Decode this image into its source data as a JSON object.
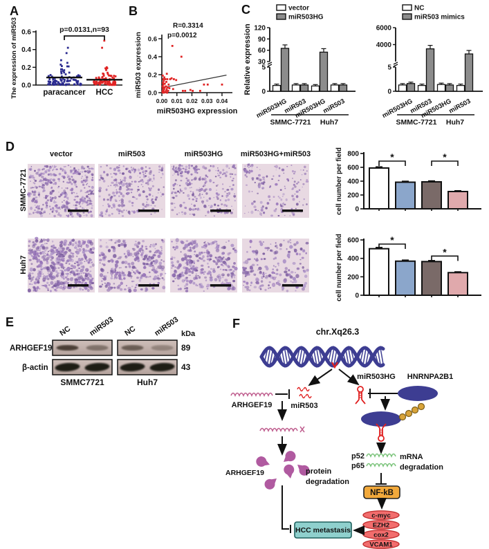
{
  "panel_labels": {
    "A": "A",
    "B": "B",
    "C": "C",
    "D": "D",
    "E": "E",
    "F": "F"
  },
  "chart_data": [
    {
      "id": "A",
      "type": "scatter",
      "ylabel": "The expression of miR503",
      "annotation": "p=0.0131,n=93",
      "ylim": [
        0,
        0.6
      ],
      "yticks": [
        "0.0",
        "0.2",
        "0.4",
        "0.6"
      ],
      "categories": [
        "paracancer",
        "HCC"
      ],
      "groups": [
        {
          "name": "paracancer",
          "color": "#2b2b90",
          "n": 93,
          "mean_line": 0.085,
          "outliers": [
            0.42,
            0.36,
            0.28,
            0.25,
            0.23,
            0.21
          ]
        },
        {
          "name": "HCC",
          "color": "#e02424",
          "n": 93,
          "mean_line": 0.06,
          "outliers": [
            0.5,
            0.42,
            0.2,
            0.19
          ]
        }
      ]
    },
    {
      "id": "B",
      "type": "scatter",
      "xlabel": "miR503HG expression",
      "ylabel": "miR503 expression",
      "r_label": "R=0.3314",
      "p_label": "p=0.0012",
      "color": "#e02424",
      "xlim": [
        0,
        0.046
      ],
      "ylim": [
        0,
        0.6
      ],
      "xticks": [
        "0.00",
        "0.01",
        "0.02",
        "0.03",
        "0.04"
      ],
      "yticks": [
        "0.0",
        "0.2",
        "0.4",
        "0.6"
      ],
      "points": [
        [
          0.0004,
          0.005
        ],
        [
          0.0006,
          0.02
        ],
        [
          0.001,
          0.01
        ],
        [
          0.0012,
          0.03
        ],
        [
          0.0008,
          0.05
        ],
        [
          0.0015,
          0.04
        ],
        [
          0.0005,
          0.07
        ],
        [
          0.001,
          0.09
        ],
        [
          0.0018,
          0.06
        ],
        [
          0.0007,
          0.11
        ],
        [
          0.0013,
          0.13
        ],
        [
          0.002,
          0.1
        ],
        [
          0.0009,
          0.15
        ],
        [
          0.0016,
          0.17
        ],
        [
          0.0006,
          0.19
        ],
        [
          0.0022,
          0.15
        ],
        [
          0.0011,
          0.0
        ],
        [
          0.0021,
          0.005
        ],
        [
          0.0028,
          0.02
        ],
        [
          0.0032,
          0.04
        ],
        [
          0.0027,
          0.07
        ],
        [
          0.0035,
          0.0
        ],
        [
          0.0038,
          0.06
        ],
        [
          0.003,
          0.12
        ],
        [
          0.0036,
          0.15
        ],
        [
          0.0042,
          0.02
        ],
        [
          0.0045,
          0.09
        ],
        [
          0.0033,
          0.21
        ],
        [
          0.005,
          0.05
        ],
        [
          0.0055,
          0.15
        ],
        [
          0.0065,
          0.16
        ],
        [
          0.007,
          0.52
        ],
        [
          0.0075,
          0.04
        ],
        [
          0.008,
          0.15
        ],
        [
          0.0095,
          0.14
        ],
        [
          0.013,
          0.4
        ],
        [
          0.014,
          0.02
        ],
        [
          0.0155,
          0.02
        ],
        [
          0.019,
          0.03
        ],
        [
          0.0205,
          0.02
        ],
        [
          0.0255,
          0.02
        ],
        [
          0.028,
          0.09
        ],
        [
          0.0305,
          0.09
        ],
        [
          0.04,
          0.09
        ]
      ],
      "trend": [
        [
          0.0005,
          0.055
        ],
        [
          0.043,
          0.195
        ]
      ]
    },
    {
      "id": "C1",
      "type": "bar",
      "ylabel": "Relative expression",
      "legend": [
        {
          "label": "vector",
          "color": "#ffffff"
        },
        {
          "label": "miR503HG",
          "color": "#8c8c8c"
        }
      ],
      "axis_break": {
        "lower_max": 5,
        "upper_min": 30,
        "upper_max": 120
      },
      "lower_ticks": [
        0,
        5
      ],
      "upper_ticks": [
        30,
        60,
        90,
        120
      ],
      "group_labels": [
        "miR503HG",
        "miR503",
        "miR503HG",
        "miR503"
      ],
      "cell_lines": [
        {
          "name": "SMMC-7721",
          "groups": [
            0,
            1
          ]
        },
        {
          "name": "Huh7",
          "groups": [
            2,
            3
          ]
        }
      ],
      "series": [
        {
          "name": "vector",
          "values": [
            1.2,
            1.3,
            1.1,
            1.3
          ]
        },
        {
          "name": "miR503HG",
          "values": [
            65,
            1.3,
            55,
            1.3
          ]
        }
      ]
    },
    {
      "id": "C2",
      "type": "bar",
      "ylabel": "",
      "legend": [
        {
          "label": "NC",
          "color": "#ffffff"
        },
        {
          "label": "miR503 mimics",
          "color": "#8c8c8c"
        }
      ],
      "axis_break": {
        "lower_max": 5,
        "upper_min": 2000,
        "upper_max": 6000
      },
      "lower_ticks": [
        0,
        5
      ],
      "upper_ticks": [
        4000,
        6000
      ],
      "group_labels": [
        "miR503HG",
        "miR503",
        "miR503HG",
        "miR503"
      ],
      "cell_lines": [
        {
          "name": "SMMC-7721",
          "groups": [
            0,
            1
          ]
        },
        {
          "name": "Huh7",
          "groups": [
            2,
            3
          ]
        }
      ],
      "series": [
        {
          "name": "NC",
          "values": [
            1.3,
            1.2,
            1.4,
            1.2
          ]
        },
        {
          "name": "miR503 mimics",
          "values": [
            1.6,
            3500,
            1.3,
            2900
          ]
        }
      ]
    },
    {
      "id": "D1",
      "type": "bar",
      "ylabel": "cell number per field",
      "ylim": [
        0,
        800
      ],
      "yticks": [
        0,
        200,
        400,
        600,
        800
      ],
      "categories": [
        "vector",
        "miR503",
        "miR503HG",
        "miR503HG+miR503"
      ],
      "values": [
        590,
        385,
        390,
        250
      ],
      "errors": [
        15,
        12,
        12,
        10
      ],
      "colors": [
        "#ffffff",
        "#8ba6cb",
        "#7a6a68",
        "#e0a9ac"
      ],
      "sig": [
        {
          "between": [
            0,
            1
          ],
          "label": "*",
          "y": 690
        },
        {
          "between": [
            2,
            3
          ],
          "label": "*",
          "y": 690
        }
      ]
    },
    {
      "id": "D2",
      "type": "bar",
      "ylabel": "cell number per field",
      "ylim": [
        0,
        600
      ],
      "yticks": [
        0,
        200,
        400,
        600
      ],
      "categories": [
        "vector",
        "miR503",
        "miR503HG",
        "miR503HG+miR503"
      ],
      "values": [
        505,
        370,
        365,
        245
      ],
      "errors": [
        12,
        10,
        10,
        8
      ],
      "colors": [
        "#ffffff",
        "#8ba6cb",
        "#7a6a68",
        "#e0a9ac"
      ],
      "sig": [
        {
          "between": [
            0,
            1
          ],
          "label": "*",
          "y": 555
        },
        {
          "between": [
            2,
            3
          ],
          "label": "*",
          "y": 425
        }
      ]
    }
  ],
  "panelD": {
    "columns": [
      "vector",
      "miR503",
      "miR503HG",
      "miR503HG+miR503"
    ],
    "rows": [
      "SMMC-7721",
      "Huh7"
    ],
    "image_densities": [
      [
        430,
        250,
        265,
        165
      ],
      [
        500,
        295,
        305,
        185
      ]
    ]
  },
  "panelE": {
    "kda_header": "kDa",
    "lanes": [
      "NC",
      "miR503",
      "NC",
      "miR503"
    ],
    "rows": [
      {
        "label": "ARHGEF19",
        "kda": "89"
      },
      {
        "label": "β-actin",
        "kda": "43"
      }
    ],
    "cell_lines": [
      "SMMC7721",
      "Huh7"
    ]
  },
  "panelF": {
    "chromosome": "chr.Xq26.3",
    "mir503hg": "miR503HG",
    "hnrnpa2b1": "HNRNPA2B1",
    "mir503": "miR503",
    "arhgef19_mrna": "ARHGEF19",
    "arhgef19_protein": "ARHGEF19",
    "protein_line1": "protein",
    "protein_line2": "degradation",
    "p52": "p52",
    "p65": "p65",
    "mrna_line1": "mRNA",
    "mrna_line2": "degradation",
    "nfkb": "NF-kB",
    "targets": [
      "c-myc",
      "EZH2",
      "cox2",
      "VCAM1"
    ],
    "hcc": "HCC metastasis",
    "colors": {
      "dna": "#3d3d92",
      "hairpin": "#e02020",
      "bead": "#d9a43a",
      "bead_stroke": "#7a5c16",
      "green": "#7cc47c",
      "nfkb_fill": "#f2a93b",
      "oval_fill": "#f26d6d",
      "oval_stroke": "#c23232",
      "oval_text": "#7c1212",
      "teal_fill": "#8fd0cd",
      "teal_stroke": "#1d5f5c",
      "purple": "#b05aa0",
      "pink": "#c06090"
    }
  }
}
